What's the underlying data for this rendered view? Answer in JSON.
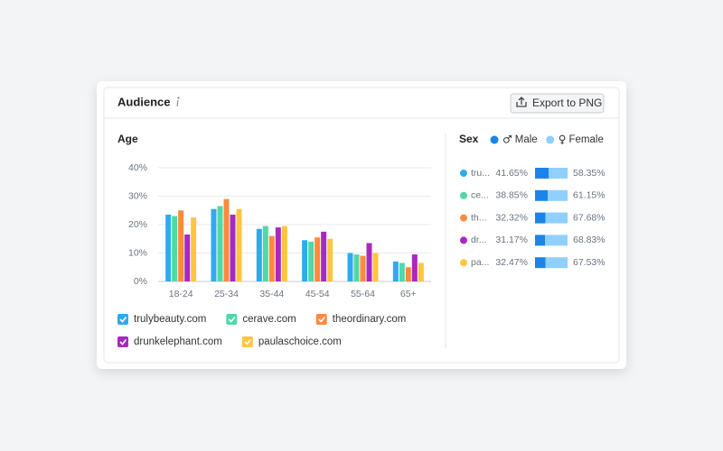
{
  "header": {
    "title": "Audience",
    "button": "Export to PNG"
  },
  "chart_data": [
    {
      "type": "bar",
      "title": "Age",
      "categories": [
        "18-24",
        "25-34",
        "35-44",
        "45-54",
        "55-64",
        "65+"
      ],
      "series": [
        {
          "name": "trulybeauty.com",
          "color": "#2eaaf0",
          "values": [
            23.5,
            25.5,
            18.5,
            14.5,
            10,
            7
          ]
        },
        {
          "name": "cerave.com",
          "color": "#4fd8a8",
          "values": [
            23,
            26.5,
            19.5,
            14,
            9.5,
            6.5
          ]
        },
        {
          "name": "theordinary.com",
          "color": "#ff8a3d",
          "values": [
            25,
            29,
            16,
            15.5,
            9,
            5
          ]
        },
        {
          "name": "drunkelephant.com",
          "color": "#a829c0",
          "values": [
            16.5,
            23.5,
            19,
            17.5,
            13.5,
            9.5
          ]
        },
        {
          "name": "paulaschoice.com",
          "color": "#ffc53d",
          "values": [
            22.5,
            25.5,
            19.5,
            15,
            10,
            6.5
          ]
        }
      ],
      "ylim": [
        0,
        40
      ],
      "yticks": [
        {
          "value": 0,
          "label": "0%"
        },
        {
          "value": 10,
          "label": "10%"
        },
        {
          "value": 20,
          "label": "20%"
        },
        {
          "value": 30,
          "label": "30%"
        },
        {
          "value": 40,
          "label": "40%"
        }
      ],
      "grid": true,
      "legend": "bottom"
    },
    {
      "type": "bar",
      "orientation": "horizontal",
      "stacked": true,
      "title": "Sex",
      "categories": [
        "tru...",
        "ce...",
        "th...",
        "dr...",
        "pa..."
      ],
      "category_colors": [
        "#2eaaf0",
        "#4fd8a8",
        "#ff8a3d",
        "#a829c0",
        "#ffc53d"
      ],
      "series": [
        {
          "name": "Male",
          "symbol": "♂",
          "color": "#1b84e8",
          "values": [
            41.65,
            38.85,
            32.32,
            31.17,
            32.47
          ],
          "value_labels": [
            "41.65%",
            "38.85%",
            "32.32%",
            "31.17%",
            "32.47%"
          ]
        },
        {
          "name": "Female",
          "symbol": "♀",
          "color": "#8fd0ff",
          "values": [
            58.35,
            61.15,
            67.68,
            68.83,
            67.53
          ],
          "value_labels": [
            "58.35%",
            "61.15%",
            "67.68%",
            "68.83%",
            "67.53%"
          ]
        }
      ],
      "xlim": [
        0,
        100
      ],
      "legend": "top"
    }
  ]
}
